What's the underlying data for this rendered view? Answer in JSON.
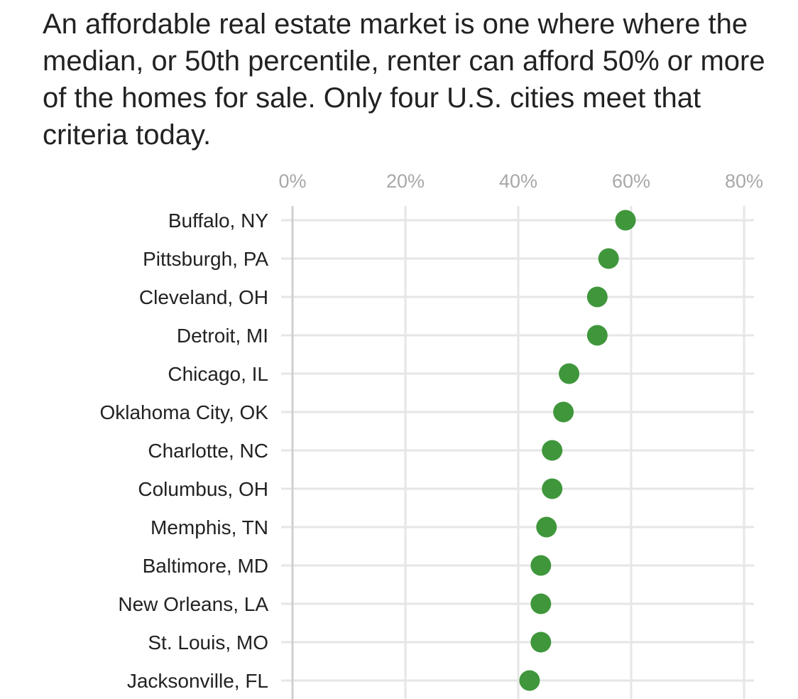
{
  "title": "An affordable real estate market is one where where the median, or 50th percentile, renter can afford 50% or more of the homes for sale. Only four U.S. cities meet that criteria today.",
  "colors": {
    "dot": "#3f963b",
    "grid": "#e6e6e6",
    "tick_text": "#a8a8a8",
    "label_text": "#222222"
  },
  "chart_data": {
    "type": "scatter",
    "title": "An affordable real estate market is one where where the median, or 50th percentile, renter can afford 50% or more of the homes for sale. Only four U.S. cities meet that criteria today.",
    "xlabel": "",
    "ylabel": "",
    "xlim": [
      0,
      80
    ],
    "x_ticks": [
      0,
      20,
      40,
      60,
      80
    ],
    "x_tick_labels": [
      "0%",
      "20%",
      "40%",
      "60%",
      "80%"
    ],
    "x_axis_position": "top",
    "grid": true,
    "categories": [
      "Buffalo, NY",
      "Pittsburgh, PA",
      "Cleveland, OH",
      "Detroit, MI",
      "Chicago, IL",
      "Oklahoma City, OK",
      "Charlotte, NC",
      "Columbus, OH",
      "Memphis, TN",
      "Baltimore, MD",
      "New Orleans, LA",
      "St. Louis, MO",
      "Jacksonville, FL"
    ],
    "values": [
      59,
      56,
      54,
      54,
      49,
      48,
      46,
      46,
      45,
      44,
      44,
      44,
      42
    ]
  }
}
